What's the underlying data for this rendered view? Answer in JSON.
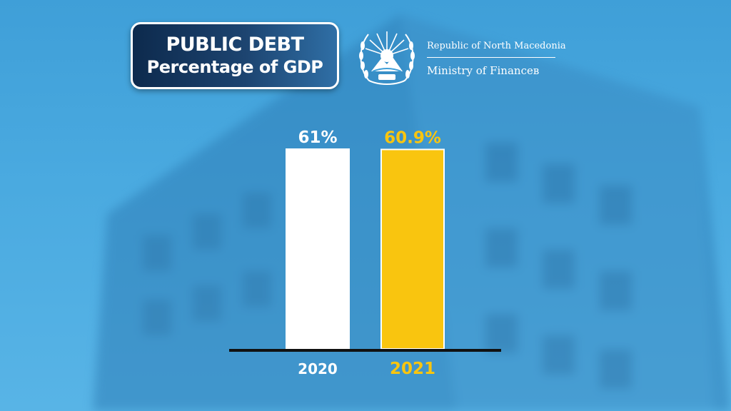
{
  "header": {
    "title_line1": "PUBLIC DEBT",
    "title_line2": "Percentage of GDP"
  },
  "government": {
    "republic": "Republic of North Macedonia",
    "ministry": "Ministry of Financeв"
  },
  "emblem_icon": "coat-of-arms-emblem",
  "colors": {
    "background": "#4aaae0",
    "title_box": "#1d4470",
    "bar_2020": "#ffffff",
    "bar_2021": "#f9c50f",
    "baseline": "#111111"
  },
  "chart_data": {
    "type": "bar",
    "title": "",
    "xlabel": "",
    "ylabel": "",
    "ylim": [
      0,
      61
    ],
    "categories": [
      "2020",
      "2021"
    ],
    "values": [
      61,
      60.9
    ],
    "data_labels": [
      "61%",
      "60.9%"
    ],
    "bar_colors": [
      "#ffffff",
      "#f9c50f"
    ],
    "label_colors": [
      "#ffffff",
      "#f9c50f"
    ],
    "grid": false
  }
}
